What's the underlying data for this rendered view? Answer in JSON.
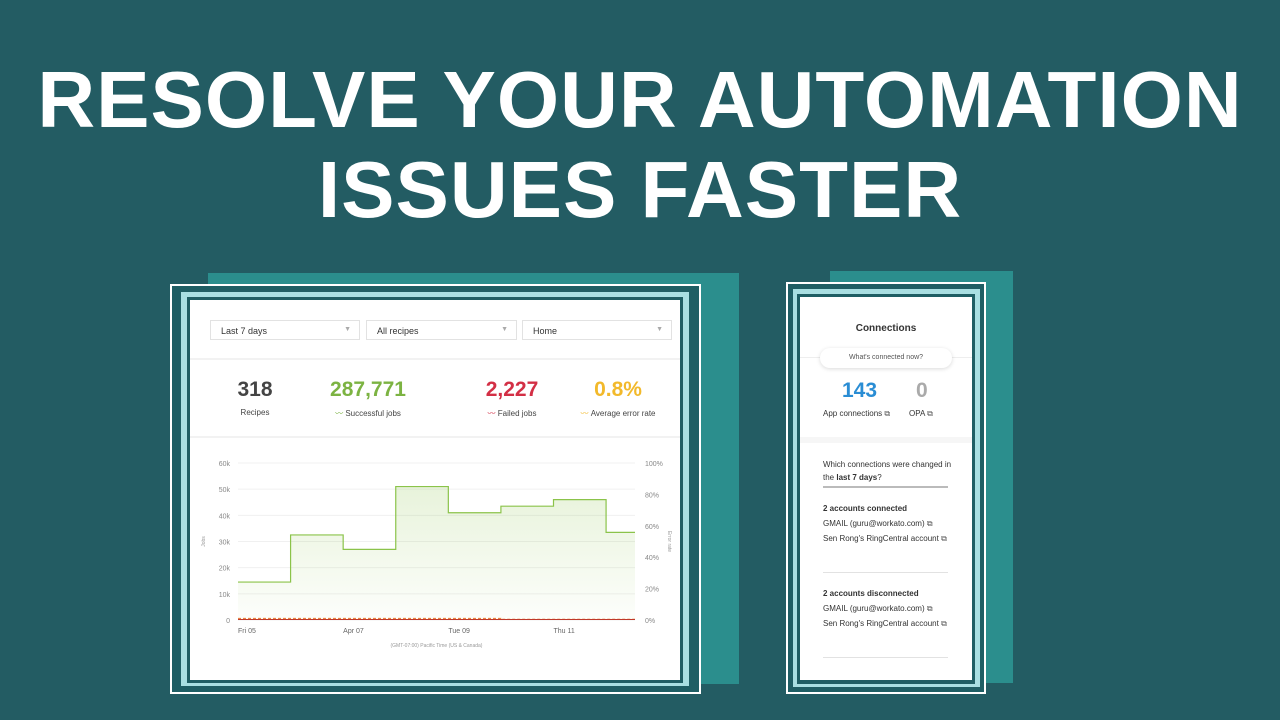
{
  "headline": {
    "line1": "RESOLVE YOUR AUTOMATION",
    "line2": "ISSUES FASTER"
  },
  "colors": {
    "background": "#235c63",
    "accent": "#2b8e8d",
    "success": "#7cb342",
    "failed": "#d32f45",
    "error_rate": "#f2b92b",
    "blue": "#2a8dd4"
  },
  "dashboard": {
    "filters": [
      {
        "value": "Last 7 days"
      },
      {
        "value": "All recipes"
      },
      {
        "value": "Home"
      }
    ],
    "stats": [
      {
        "value": "318",
        "label": "Recipes",
        "color": "#444444"
      },
      {
        "value": "287,771",
        "label": "Successful jobs",
        "color": "#7cb342",
        "icon": "trend-icon"
      },
      {
        "value": "2,227",
        "label": "Failed jobs",
        "color": "#d32f45",
        "icon": "trend-icon"
      },
      {
        "value": "0.8%",
        "label": "Average error rate",
        "color": "#f2b92b",
        "icon": "trend-icon"
      }
    ]
  },
  "chart_data": {
    "type": "area",
    "step": true,
    "x": [
      "Apr 05",
      "Apr 06",
      "Apr 07",
      "Apr 08",
      "Apr 09",
      "Apr 10",
      "Apr 11",
      "Apr 12"
    ],
    "xtick_labels": [
      "Fri 05",
      "Apr 07",
      "Tue 09",
      "Thu 11"
    ],
    "xlabel": "(GMT-07:00) Pacific Time (US & Canada)",
    "ylabel": "Jobs",
    "y2label": "Error rate",
    "ylim": [
      0,
      60000
    ],
    "y2lim": [
      0,
      100
    ],
    "yticks": [
      "0",
      "10k",
      "20k",
      "30k",
      "40k",
      "50k",
      "60k"
    ],
    "y2ticks": [
      "0%",
      "20%",
      "40%",
      "60%",
      "80%",
      "100%"
    ],
    "grid": true,
    "series": [
      {
        "values": [
          14500,
          32500,
          27000,
          51000,
          41000,
          43500,
          46000,
          33500
        ],
        "color": "#8bc34a"
      },
      {
        "values": [
          1,
          1,
          1,
          1,
          1,
          0.5,
          0.5,
          0.5
        ],
        "color": "#e8762b",
        "axis": "right",
        "style": "dashed"
      }
    ]
  },
  "connections": {
    "title": "Connections",
    "pill": "What's connected now?",
    "app_count": "143",
    "app_label": "App connections",
    "opa_count": "0",
    "opa_label": "OPA",
    "question_1": "Which connections were changed in the ",
    "question_bold": "last 7 days",
    "question_end": "?",
    "connected_title": "2 accounts connected",
    "connected": [
      "GMAIL (guru@workato.com)",
      "Sen Rong's RingCentral account"
    ],
    "disconnected_title": "2 accounts disconnected",
    "disconnected": [
      "GMAIL (guru@workato.com)",
      "Sen Rong's RingCentral account"
    ]
  }
}
